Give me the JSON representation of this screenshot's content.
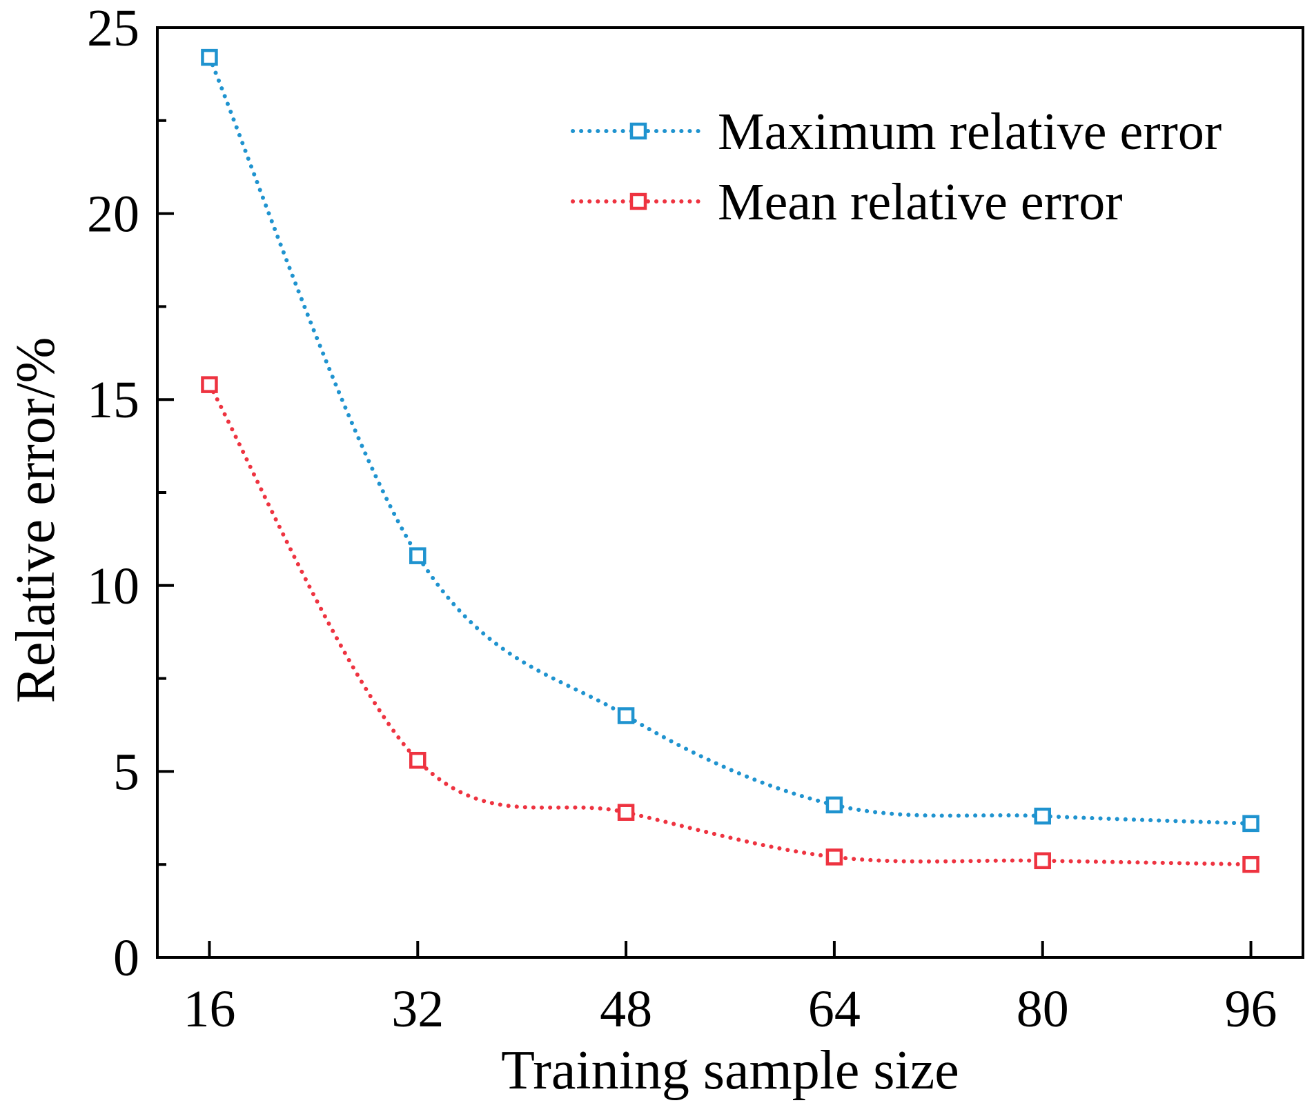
{
  "chart_data": {
    "type": "line",
    "title": "",
    "xlabel": "Training sample size",
    "ylabel": "Relative error/%",
    "x": [
      16,
      32,
      48,
      64,
      80,
      96
    ],
    "x_ticks": [
      "16",
      "32",
      "48",
      "64",
      "80",
      "96"
    ],
    "y_ticks": [
      "0",
      "5",
      "10",
      "15",
      "20",
      "25"
    ],
    "xlim": [
      12,
      100
    ],
    "ylim": [
      0,
      25
    ],
    "grid": false,
    "legend_position": "top-right",
    "series": [
      {
        "name": "Maximum relative error",
        "color": "#1f93cf",
        "marker": "open-square",
        "line": "dotted",
        "values": [
          24.2,
          10.8,
          6.5,
          4.1,
          3.8,
          3.6
        ]
      },
      {
        "name": "Mean relative error",
        "color": "#ee3340",
        "marker": "open-square",
        "line": "dotted",
        "values": [
          15.4,
          5.3,
          3.9,
          2.7,
          2.6,
          2.5
        ]
      }
    ]
  }
}
